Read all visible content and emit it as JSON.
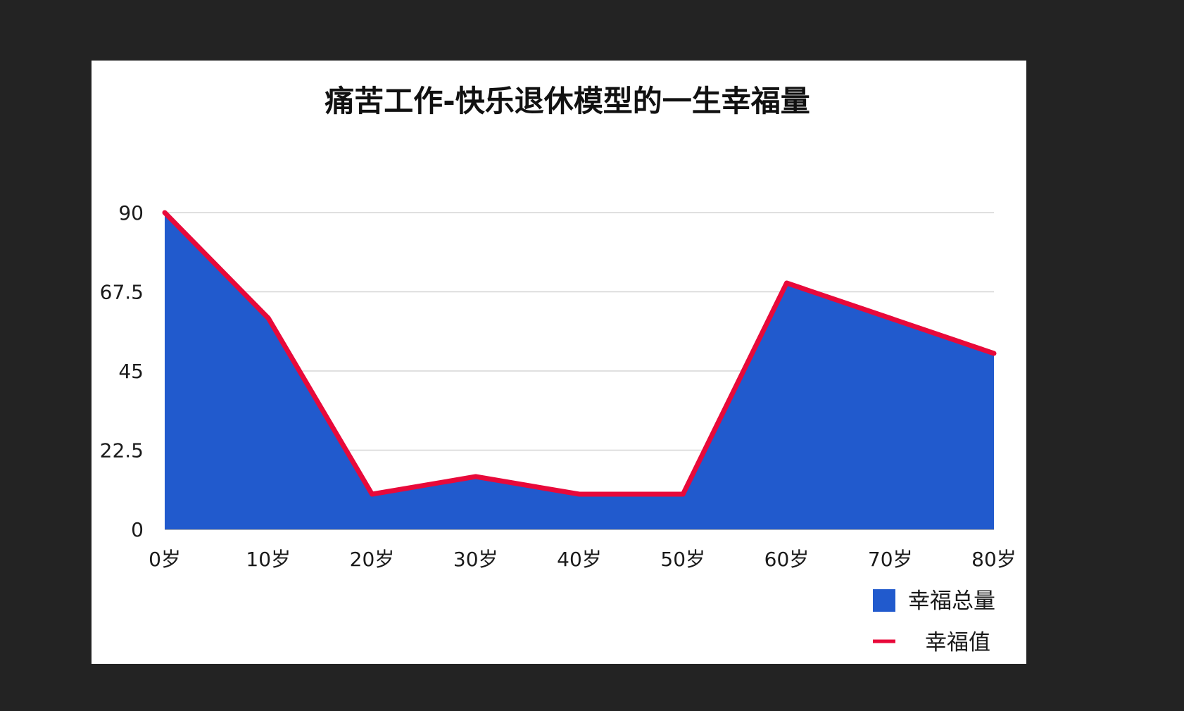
{
  "chart_data": {
    "type": "area",
    "title": "痛苦工作-快乐退休模型的一生幸福量",
    "xlabel": "",
    "ylabel": "",
    "categories": [
      "0岁",
      "10岁",
      "20岁",
      "30岁",
      "40岁",
      "50岁",
      "60岁",
      "70岁",
      "80岁"
    ],
    "y_ticks": [
      "0",
      "22.5",
      "45",
      "67.5",
      "90"
    ],
    "ylim": [
      0,
      90
    ],
    "grid": true,
    "legend_position": "bottom-right",
    "series": [
      {
        "name": "幸福总量",
        "kind": "area",
        "color": "#215ACD",
        "values": [
          90,
          60,
          10,
          15,
          10,
          10,
          70,
          60,
          50
        ]
      },
      {
        "name": "幸福值",
        "kind": "line",
        "color": "#E8093A",
        "values": [
          90,
          60,
          10,
          15,
          10,
          10,
          70,
          60,
          50
        ]
      }
    ]
  }
}
